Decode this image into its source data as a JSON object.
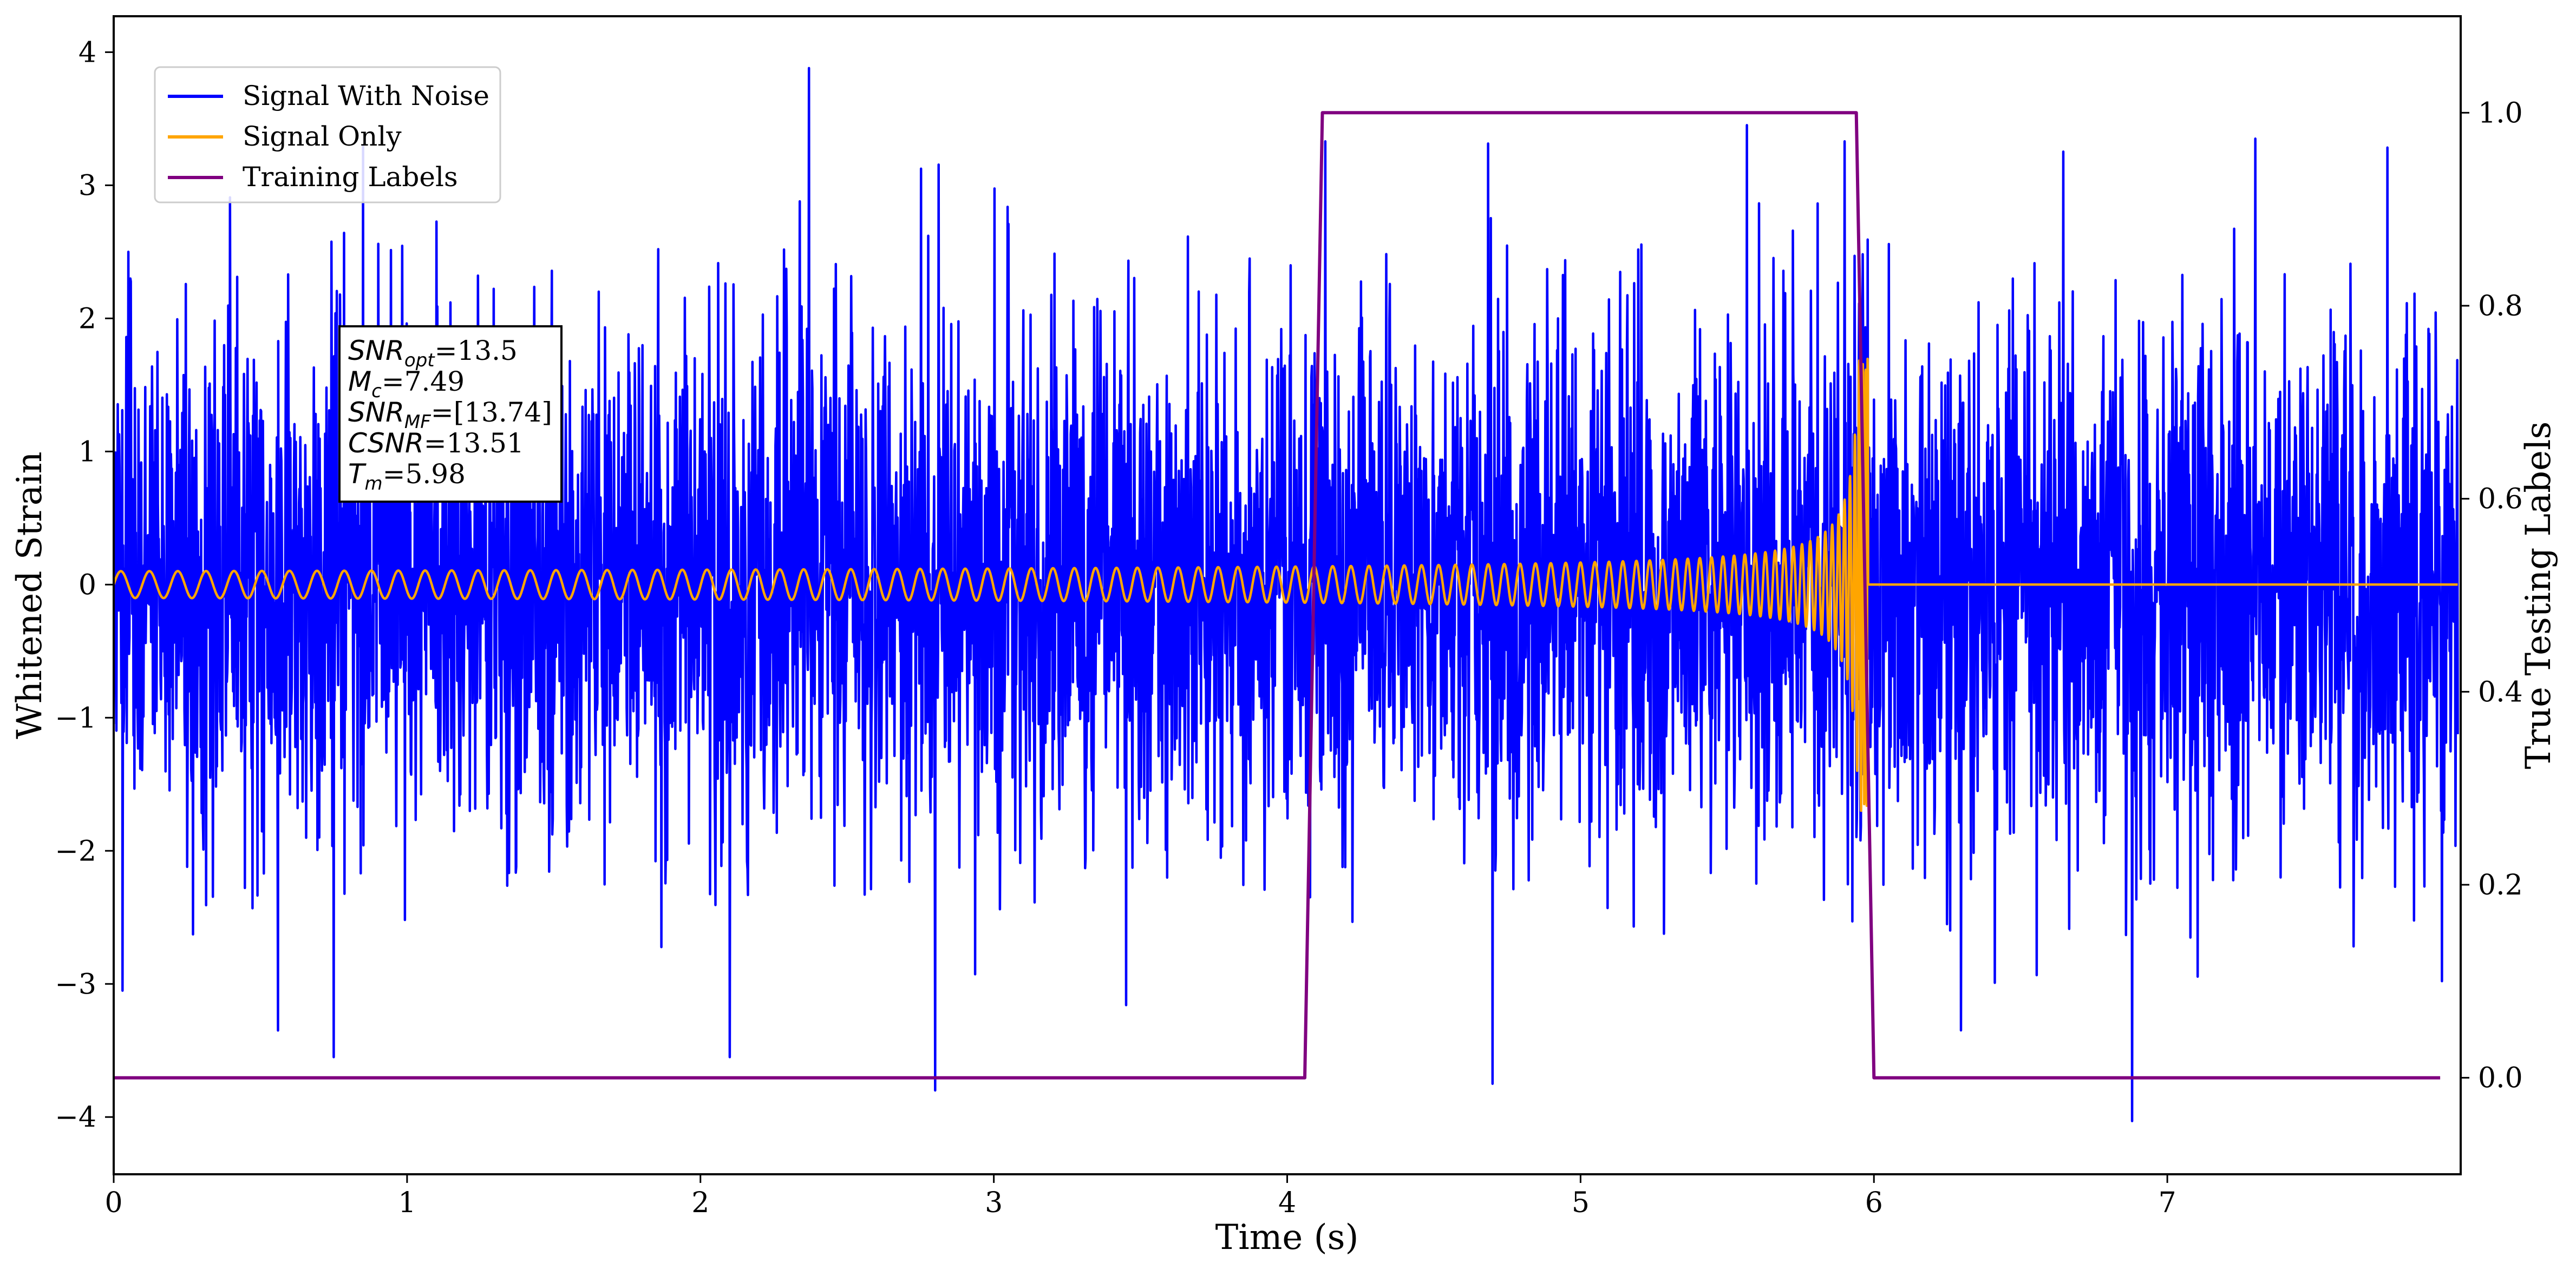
{
  "chart_data": {
    "type": "line",
    "xlabel": "Time (s)",
    "ylabel_left": "Whitened Strain",
    "ylabel_right": "True Testing Labels",
    "xlim": [
      0,
      8.0
    ],
    "ylim_left": [
      -4.43,
      4.27
    ],
    "ylim_right": [
      -0.1,
      1.1
    ],
    "x_ticks": [
      0,
      1,
      2,
      3,
      4,
      5,
      6,
      7
    ],
    "x_tick_labels": [
      "0",
      "1",
      "2",
      "3",
      "4",
      "5",
      "6",
      "7"
    ],
    "y_left_ticks": [
      4,
      3,
      2,
      1,
      0,
      -1,
      -2,
      -3,
      -4
    ],
    "y_left_tick_labels": [
      "4",
      "3",
      "2",
      "1",
      "0",
      "−1",
      "−2",
      "−3",
      "−4"
    ],
    "y_right_ticks": [
      1.0,
      0.8,
      0.6,
      0.4,
      0.2,
      0.0
    ],
    "y_right_tick_labels": [
      "1.0",
      "0.8",
      "0.6",
      "0.4",
      "0.2",
      "0.0"
    ],
    "grid": false,
    "legend_position": "top-left",
    "series": [
      {
        "name": "Signal With Noise",
        "color": "#0000ff",
        "axis": "left",
        "kind": "noisy-strain",
        "x_range": [
          0,
          7.99
        ],
        "typical_amplitude": 1.5,
        "extremes": [
          {
            "x": 0.05,
            "y": 2.5
          },
          {
            "x": 0.03,
            "y": -3.05
          },
          {
            "x": 0.56,
            "y": -3.35
          },
          {
            "x": 0.75,
            "y": -3.55
          },
          {
            "x": 0.85,
            "y": 3.3
          },
          {
            "x": 2.1,
            "y": -3.55
          },
          {
            "x": 2.37,
            "y": 3.88
          },
          {
            "x": 2.8,
            "y": -3.8
          },
          {
            "x": 4.13,
            "y": 3.33
          },
          {
            "x": 4.7,
            "y": -3.75
          },
          {
            "x": 5.9,
            "y": 3.33
          },
          {
            "x": 6.88,
            "y": -4.03
          },
          {
            "x": 7.3,
            "y": 3.35
          }
        ]
      },
      {
        "name": "Signal Only",
        "color": "#ffa500",
        "axis": "left",
        "kind": "chirp",
        "x_range": [
          0,
          7.99
        ],
        "merger_time": 5.98,
        "peak_amplitude": 1.7,
        "start_amplitude": 0.1,
        "post_merger_value": 0
      },
      {
        "name": "Training Labels",
        "color": "#800080",
        "axis": "right",
        "kind": "step",
        "points": [
          {
            "x": 0,
            "y": 0.0
          },
          {
            "x": 4.06,
            "y": 0.0
          },
          {
            "x": 4.12,
            "y": 1.0
          },
          {
            "x": 5.94,
            "y": 1.0
          },
          {
            "x": 6.0,
            "y": 0.0
          },
          {
            "x": 7.93,
            "y": 0.0
          }
        ]
      }
    ],
    "annotation": {
      "lines": [
        {
          "label": "SNR",
          "sub": "opt",
          "value": "=13.5"
        },
        {
          "label": "M",
          "sub": "c",
          "value": "=7.49"
        },
        {
          "label": "SNR",
          "sub": "MF",
          "value": "=[13.74]"
        },
        {
          "label": "CSNR",
          "sub": "",
          "value": "=13.51"
        },
        {
          "label": "T",
          "sub": "m",
          "value": "=5.98"
        }
      ]
    }
  }
}
